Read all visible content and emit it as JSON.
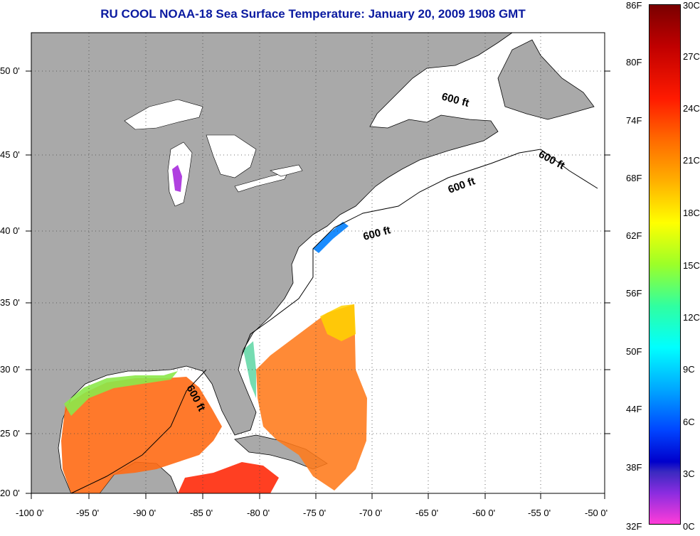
{
  "title": "RU COOL  NOAA-18  Sea Surface Temperature:  January 20, 2009 1908 GMT",
  "lat_labels": [
    "50 0'",
    "45 0'",
    "40 0'",
    "35 0'",
    "30 0'",
    "25 0'",
    "20 0'"
  ],
  "lon_labels": [
    "-100 0'",
    "-95 0'",
    "-90 0'",
    "-85 0'",
    "-80 0'",
    "-75 0'",
    "-70 0'",
    "-65 0'",
    "-60 0'",
    "-55 0'",
    "-50 0'"
  ],
  "isobath_labels": [
    "600 ft",
    "600 ft",
    "600 ft",
    "600 ft",
    "600 ft"
  ],
  "colorbar": {
    "fahrenheit": [
      "86F",
      "80F",
      "74F",
      "68F",
      "62F",
      "56F",
      "50F",
      "44F",
      "38F",
      "32F"
    ],
    "celsius": [
      "30C",
      "27C",
      "24C",
      "21C",
      "18C",
      "15C",
      "12C",
      "9C",
      "6C",
      "3C",
      "0C"
    ]
  },
  "colors": {
    "land": "#a9a9a9",
    "title": "#0a1aa0"
  }
}
